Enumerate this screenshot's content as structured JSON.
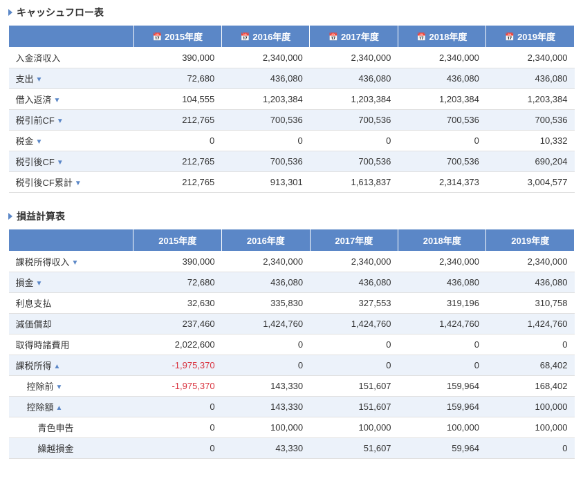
{
  "sections": {
    "cashflow": {
      "title": "キャッシュフロー表"
    },
    "pl": {
      "title": "損益計算表"
    }
  },
  "years": [
    "2015年度",
    "2016年度",
    "2017年度",
    "2018年度",
    "2019年度"
  ],
  "cashflow": {
    "rows": [
      {
        "label": "入金済収入",
        "expand": null,
        "vals": [
          "390,000",
          "2,340,000",
          "2,340,000",
          "2,340,000",
          "2,340,000"
        ]
      },
      {
        "label": "支出",
        "expand": "down",
        "vals": [
          "72,680",
          "436,080",
          "436,080",
          "436,080",
          "436,080"
        ]
      },
      {
        "label": "借入返済",
        "expand": "down",
        "vals": [
          "104,555",
          "1,203,384",
          "1,203,384",
          "1,203,384",
          "1,203,384"
        ]
      },
      {
        "label": "税引前CF",
        "expand": "down",
        "vals": [
          "212,765",
          "700,536",
          "700,536",
          "700,536",
          "700,536"
        ]
      },
      {
        "label": "税金",
        "expand": "down",
        "vals": [
          "0",
          "0",
          "0",
          "0",
          "10,332"
        ]
      },
      {
        "label": "税引後CF",
        "expand": "down",
        "vals": [
          "212,765",
          "700,536",
          "700,536",
          "700,536",
          "690,204"
        ]
      },
      {
        "label": "税引後CF累計",
        "expand": "down",
        "vals": [
          "212,765",
          "913,301",
          "1,613,837",
          "2,314,373",
          "3,004,577"
        ]
      }
    ]
  },
  "pl": {
    "rows": [
      {
        "label": "課税所得収入",
        "expand": "down",
        "indent": 0,
        "vals": [
          "390,000",
          "2,340,000",
          "2,340,000",
          "2,340,000",
          "2,340,000"
        ],
        "neg": [
          false,
          false,
          false,
          false,
          false
        ]
      },
      {
        "label": "損金",
        "expand": "down",
        "indent": 0,
        "vals": [
          "72,680",
          "436,080",
          "436,080",
          "436,080",
          "436,080"
        ],
        "neg": [
          false,
          false,
          false,
          false,
          false
        ]
      },
      {
        "label": "利息支払",
        "expand": null,
        "indent": 0,
        "vals": [
          "32,630",
          "335,830",
          "327,553",
          "319,196",
          "310,758"
        ],
        "neg": [
          false,
          false,
          false,
          false,
          false
        ]
      },
      {
        "label": "減価償却",
        "expand": null,
        "indent": 0,
        "vals": [
          "237,460",
          "1,424,760",
          "1,424,760",
          "1,424,760",
          "1,424,760"
        ],
        "neg": [
          false,
          false,
          false,
          false,
          false
        ]
      },
      {
        "label": "取得時諸費用",
        "expand": null,
        "indent": 0,
        "vals": [
          "2,022,600",
          "0",
          "0",
          "0",
          "0"
        ],
        "neg": [
          false,
          false,
          false,
          false,
          false
        ]
      },
      {
        "label": "課税所得",
        "expand": "up",
        "indent": 0,
        "vals": [
          "-1,975,370",
          "0",
          "0",
          "0",
          "68,402"
        ],
        "neg": [
          true,
          false,
          false,
          false,
          false
        ]
      },
      {
        "label": "控除前",
        "expand": "down",
        "indent": 1,
        "vals": [
          "-1,975,370",
          "143,330",
          "151,607",
          "159,964",
          "168,402"
        ],
        "neg": [
          true,
          false,
          false,
          false,
          false
        ]
      },
      {
        "label": "控除額",
        "expand": "up",
        "indent": 1,
        "vals": [
          "0",
          "143,330",
          "151,607",
          "159,964",
          "100,000"
        ],
        "neg": [
          false,
          false,
          false,
          false,
          false
        ]
      },
      {
        "label": "青色申告",
        "expand": null,
        "indent": 2,
        "vals": [
          "0",
          "100,000",
          "100,000",
          "100,000",
          "100,000"
        ],
        "neg": [
          false,
          false,
          false,
          false,
          false
        ]
      },
      {
        "label": "繰越損金",
        "expand": null,
        "indent": 2,
        "vals": [
          "0",
          "43,330",
          "51,607",
          "59,964",
          "0"
        ],
        "neg": [
          false,
          false,
          false,
          false,
          false
        ]
      }
    ]
  },
  "icons": {
    "calendar": "📅"
  }
}
